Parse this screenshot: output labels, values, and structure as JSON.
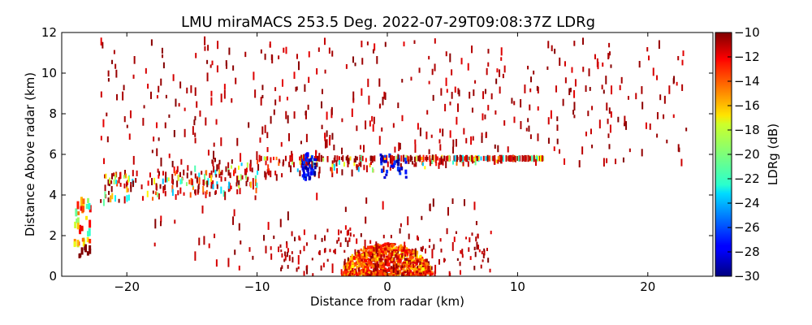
{
  "chart_data": {
    "type": "heatmap",
    "title": "LMU miraMACS 253.5 Deg. 2022-07-29T09:08:37Z  LDRg",
    "xlabel": "Distance from radar (km)",
    "ylabel": "Distance Above radar  (km)",
    "xlim": [
      -25,
      25
    ],
    "ylim": [
      0,
      12
    ],
    "x_ticks": [
      -20,
      -10,
      0,
      10,
      20
    ],
    "x_tick_labels": [
      "−20",
      "−10",
      "0",
      "10",
      "20"
    ],
    "y_ticks": [
      0,
      2,
      4,
      6,
      8,
      10,
      12
    ],
    "y_tick_labels": [
      "0",
      "2",
      "4",
      "6",
      "8",
      "10",
      "12"
    ],
    "colorbar": {
      "label": "LDRg (dB)",
      "range": [
        -30,
        -10
      ],
      "ticks": [
        -10,
        -12,
        -14,
        -16,
        -18,
        -20,
        -22,
        -24,
        -26,
        -28,
        -30
      ],
      "tick_labels": [
        "−10",
        "−12",
        "−14",
        "−16",
        "−18",
        "−20",
        "−22",
        "−24",
        "−26",
        "−28",
        "−30"
      ],
      "colormap": "jet"
    },
    "features": [
      {
        "name": "near-radar echo",
        "x_range": [
          -3.5,
          3.5
        ],
        "z_range": [
          0,
          1.6
        ],
        "ldr_range": [
          -16,
          -10
        ]
      },
      {
        "name": "melting/mixed layer",
        "x_range": [
          -22,
          12
        ],
        "z_range": [
          3.6,
          5.8
        ],
        "ldr_range": [
          -28,
          -10
        ]
      },
      {
        "name": "low LDR patches",
        "x_range": [
          -6.5,
          1.5
        ],
        "z_range": [
          4.8,
          6.0
        ],
        "ldr_range": [
          -30,
          -26
        ]
      },
      {
        "name": "scattered upper echoes",
        "x_range": [
          -22,
          23
        ],
        "z_range": [
          5.5,
          11.6
        ],
        "ldr_range": [
          -12,
          -10
        ]
      },
      {
        "name": "near-range column",
        "x_range": [
          -24,
          -22.8
        ],
        "z_range": [
          1.0,
          3.8
        ],
        "ldr_range": [
          -22,
          -12
        ]
      }
    ]
  }
}
